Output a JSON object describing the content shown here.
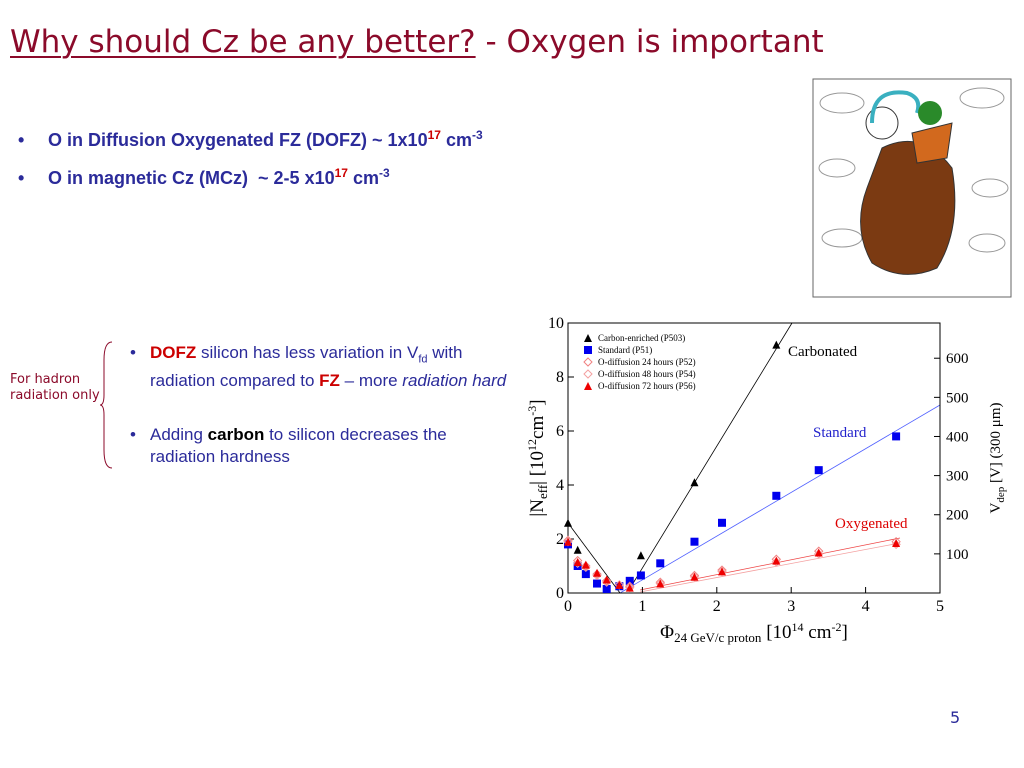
{
  "header": {
    "title": "Why should Cz be any better?",
    "subtitle": " - Oxygen is important"
  },
  "bullets": [
    {
      "marker": "•",
      "parts": [
        "O",
        "in Diffusion Oxygenated FZ (DOFZ) ~ 1x10",
        "17",
        " cm",
        "-3"
      ]
    },
    {
      "marker": "•",
      "parts": [
        "O",
        "in magnetic Cz (MCz)  ~ 2-5 x10",
        "17",
        " cm",
        "-3"
      ]
    }
  ],
  "side_note": "For hadron radiation only",
  "points": [
    {
      "marker": "•",
      "parts": [
        "DOFZ",
        " silicon has less variation in V",
        "fd",
        " with radiation compared to ",
        "FZ",
        " – more ",
        "radiation hard"
      ]
    },
    {
      "marker": "•",
      "parts": [
        "Adding ",
        "carbon",
        " to silicon decreases the radiation hardness"
      ]
    }
  ],
  "page_number": "5",
  "chart_data": {
    "type": "scatter",
    "x_label": [
      "Φ",
      "24 GeV/c proton",
      " [10",
      "14",
      " cm",
      "-2",
      "]"
    ],
    "y_label": [
      "|N",
      "eff",
      "|  [10",
      "12",
      "cm",
      "-3",
      "]"
    ],
    "y2_label": [
      "V",
      "dep",
      " [V] (300 μm)"
    ],
    "xlim": [
      0,
      5
    ],
    "xticks": [
      0,
      1,
      2,
      3,
      4,
      5
    ],
    "ylim": [
      0,
      10
    ],
    "yticks": [
      0,
      2,
      4,
      6,
      8,
      10
    ],
    "y2lim": [
      0,
      690
    ],
    "y2ticks": [
      100,
      200,
      300,
      400,
      500,
      600
    ],
    "legend": "upper left",
    "annotations": [
      "Carbonated",
      "Standard",
      "Oxygenated"
    ],
    "series": [
      {
        "name": "Carbon-enriched (P503)",
        "color": "#000000",
        "marker": "triangle",
        "x": [
          0,
          0.13,
          0.98,
          1.7,
          2.8
        ],
        "values": [
          2.6,
          1.6,
          1.4,
          4.1,
          9.2
        ]
      },
      {
        "name": "Standard (P51)",
        "color": "#0000ee",
        "marker": "square",
        "x": [
          0,
          0.13,
          0.24,
          0.39,
          0.52,
          0.69,
          0.83,
          0.98,
          1.24,
          1.7,
          2.07,
          2.8,
          3.37,
          4.41
        ],
        "values": [
          1.8,
          1.0,
          0.7,
          0.35,
          0.15,
          0.25,
          0.45,
          0.65,
          1.1,
          1.9,
          2.6,
          3.6,
          4.55,
          5.8
        ]
      },
      {
        "name": "O-diffusion 24 hours (P52)",
        "color": "#f08080",
        "marker": "diamond",
        "x": [
          0,
          0.13,
          0.24,
          0.39,
          0.52,
          0.69,
          0.83,
          1.24,
          1.7,
          2.07,
          2.8,
          3.37,
          4.41
        ],
        "values": [
          1.95,
          1.2,
          1.0,
          0.7,
          0.45,
          0.3,
          0.25,
          0.4,
          0.65,
          0.85,
          1.25,
          1.55,
          1.9
        ]
      },
      {
        "name": "O-diffusion 48 hours (P54)",
        "color": "#f4a0a0",
        "marker": "diamond",
        "x": [
          0,
          0.13,
          0.24,
          0.39,
          0.52,
          0.69,
          0.83,
          1.24,
          1.7,
          2.07,
          2.8,
          3.37,
          4.41
        ],
        "values": [
          1.9,
          1.1,
          0.95,
          0.65,
          0.4,
          0.3,
          0.2,
          0.35,
          0.6,
          0.8,
          1.15,
          1.45,
          1.8
        ]
      },
      {
        "name": "O-diffusion 72 hours (P56)",
        "color": "#ee0000",
        "marker": "triangle",
        "x": [
          0,
          0.13,
          0.24,
          0.39,
          0.52,
          0.69,
          0.83,
          1.24,
          1.7,
          2.07,
          2.8,
          3.37,
          4.41
        ],
        "values": [
          1.9,
          1.15,
          1.05,
          0.75,
          0.5,
          0.3,
          0.2,
          0.35,
          0.6,
          0.8,
          1.2,
          1.5,
          1.85
        ]
      }
    ]
  }
}
